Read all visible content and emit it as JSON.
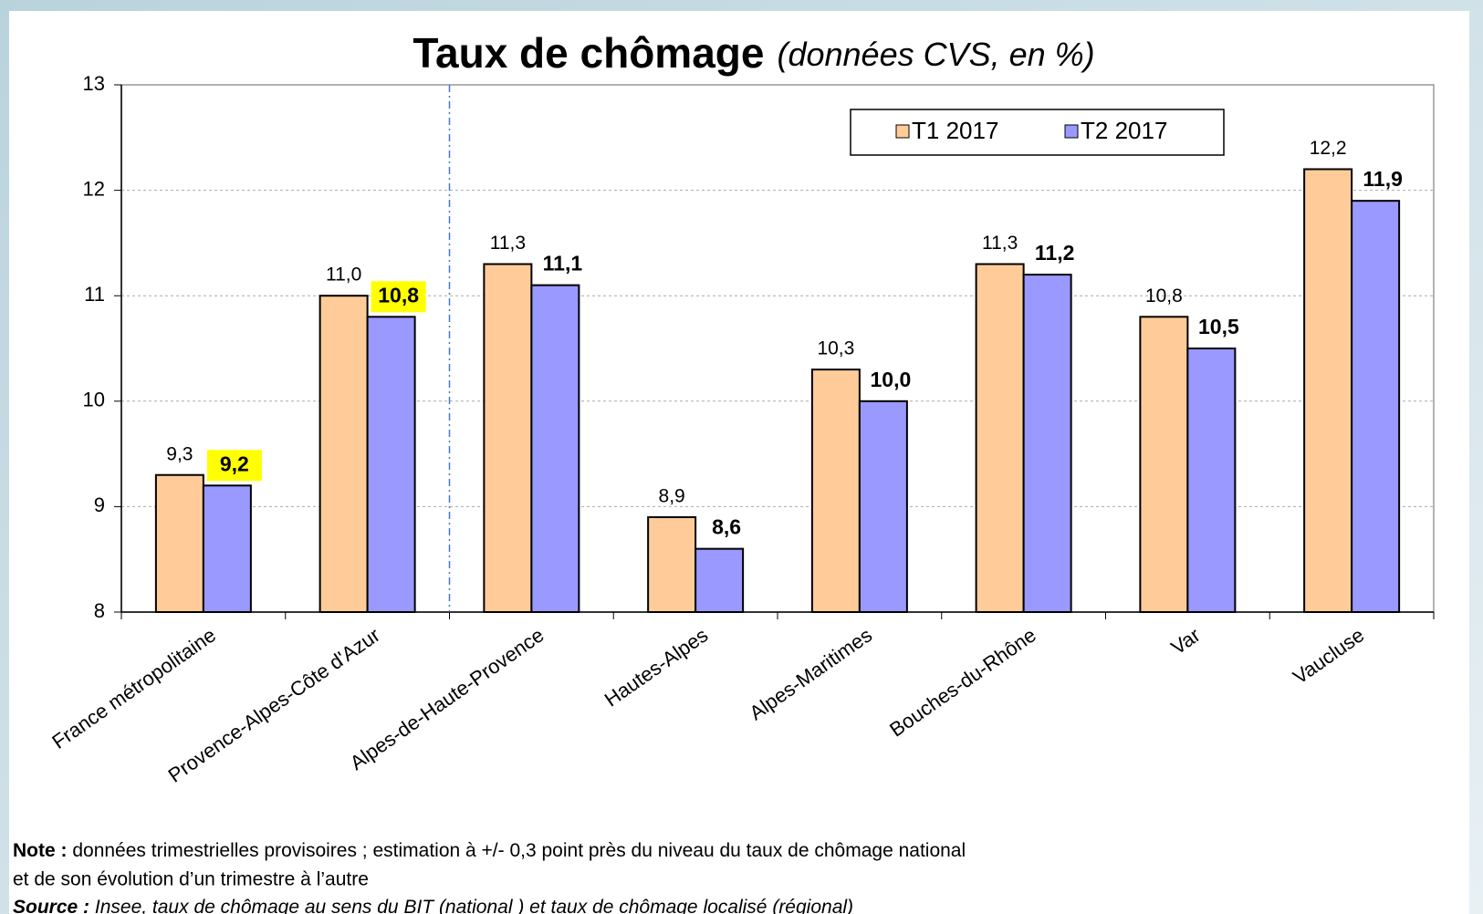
{
  "chart_data": {
    "type": "bar",
    "title": "Taux de chômage",
    "subtitle": "(données CVS, en %)",
    "categories": [
      "France métropolitaine",
      "Provence-Alpes-Côte d'Azur",
      "Alpes-de-Haute-Provence",
      "Hautes-Alpes",
      "Alpes-Maritimes",
      "Bouches-du-Rhône",
      "Var",
      "Vaucluse"
    ],
    "series": [
      {
        "name": "T1 2017",
        "color": "#ffcc99",
        "values": [
          9.3,
          11.0,
          11.3,
          8.9,
          10.3,
          11.3,
          10.8,
          12.2
        ],
        "value_labels": [
          "9,3",
          "11,0",
          "11,3",
          "8,9",
          "10,3",
          "11,3",
          "10,8",
          "12,2"
        ]
      },
      {
        "name": "T2 2017",
        "color": "#9999ff",
        "values": [
          9.2,
          10.8,
          11.1,
          8.6,
          10.0,
          11.2,
          10.5,
          11.9
        ],
        "value_labels": [
          "9,2",
          "10,8",
          "11,1",
          "8,6",
          "10,0",
          "11,2",
          "10,5",
          "11,9"
        ],
        "highlight_color": "#ffff00",
        "highlight_indices": [
          0,
          1
        ]
      }
    ],
    "ylim": [
      8,
      13
    ],
    "yticks": [
      8,
      9,
      10,
      11,
      12,
      13
    ],
    "grid": true,
    "legend": "top-right"
  },
  "notes": {
    "note_label": "Note :",
    "note_text": "données trimestrielles provisoires ; estimation à +/- 0,3 point près du niveau du taux de chômage national",
    "note_line2": "et de son évolution d’un trimestre à l’autre",
    "source_label": "Source :",
    "source_text": "Insee, taux de chômage au sens du BIT (national ) et taux de chômage localisé (régional)"
  }
}
